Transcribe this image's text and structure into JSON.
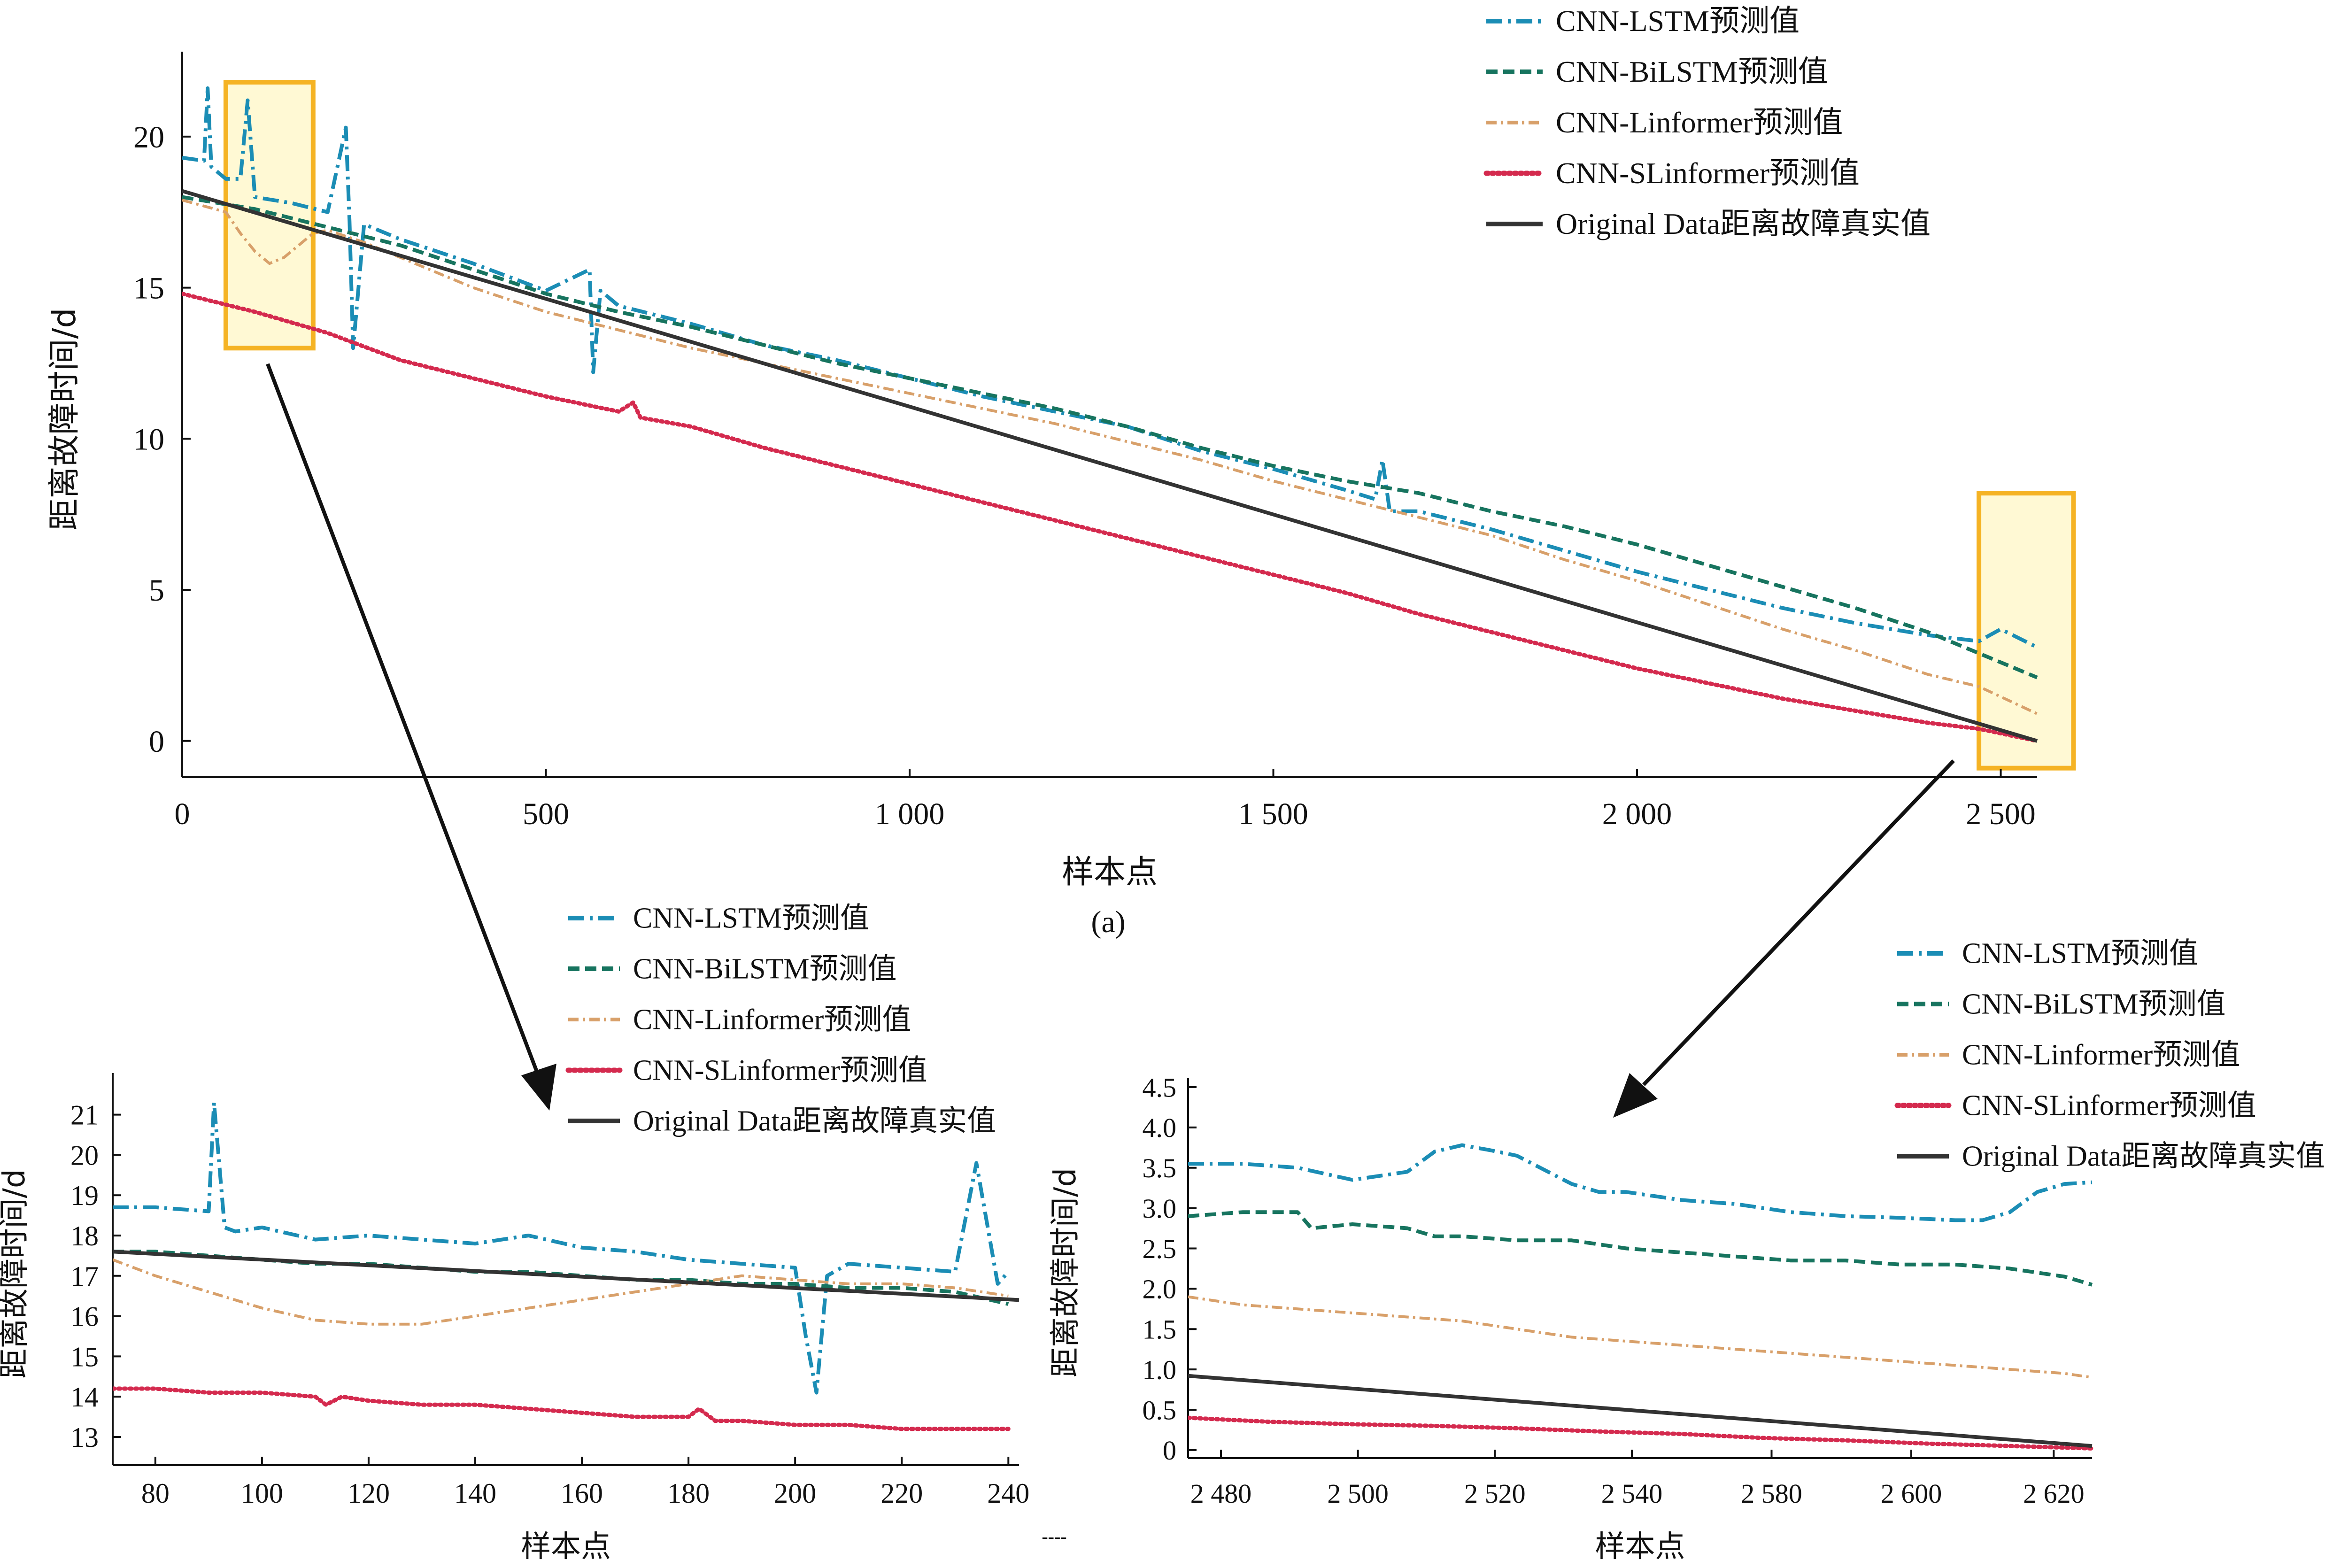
{
  "figure_label": "(a)",
  "footer_mark": "----",
  "colors": {
    "lstm": "#1b8db5",
    "bilstm": "#17745f",
    "linformer": "#d8a06a",
    "slinformer": "#d42a4e",
    "original": "#333333",
    "highlight_fill": "#fff7c2",
    "highlight_stroke": "#f5b324"
  },
  "chart_data": [
    {
      "id": "main",
      "type": "line",
      "title": "",
      "xlabel": "样本点",
      "ylabel": "距离故障时间/d",
      "xlim": [
        0,
        2550
      ],
      "ylim": [
        -1.2,
        22.5
      ],
      "x_ticks": [
        0,
        500,
        1000,
        1500,
        2000,
        2500
      ],
      "x_tick_labels": [
        "0",
        "500",
        "1 000",
        "1 500",
        "2 000",
        "2 500"
      ],
      "y_ticks": [
        0,
        5,
        10,
        15,
        20
      ],
      "y_tick_labels": [
        "0",
        "5",
        "10",
        "15",
        "20"
      ],
      "legend": [
        "CNN-LSTM预测值",
        "CNN-BiLSTM预测值",
        "CNN-Linformer预测值",
        "CNN-SLinformer预测值",
        "Original Data距离故障真实值"
      ],
      "legend_position": "top-right",
      "highlights": [
        {
          "x": [
            60,
            180
          ],
          "y": [
            13,
            21.8
          ]
        },
        {
          "x": [
            2470,
            2600
          ],
          "y": [
            -0.9,
            8.2
          ]
        }
      ],
      "series": [
        {
          "name": "CNN-LSTM预测值",
          "key": "lstm",
          "x": [
            0,
            30,
            35,
            40,
            60,
            80,
            90,
            100,
            150,
            200,
            225,
            230,
            235,
            250,
            300,
            400,
            500,
            560,
            565,
            575,
            600,
            700,
            800,
            900,
            1000,
            1100,
            1200,
            1300,
            1400,
            1500,
            1600,
            1640,
            1650,
            1660,
            1700,
            1800,
            1900,
            2000,
            2100,
            2200,
            2300,
            2400,
            2470,
            2500,
            2550
          ],
          "y": [
            19.3,
            19.2,
            21.6,
            19.0,
            18.6,
            18.6,
            21.2,
            18.0,
            17.8,
            17.5,
            20.3,
            17.2,
            13.0,
            17.1,
            16.6,
            15.8,
            14.9,
            15.6,
            12.2,
            14.9,
            14.4,
            13.8,
            13.1,
            12.6,
            12.0,
            11.4,
            10.9,
            10.4,
            9.6,
            9.0,
            8.3,
            8.0,
            9.3,
            7.6,
            7.6,
            7.0,
            6.3,
            5.6,
            5.0,
            4.4,
            3.9,
            3.5,
            3.3,
            3.7,
            3.1
          ]
        },
        {
          "name": "CNN-BiLSTM预测值",
          "key": "bilstm",
          "x": [
            0,
            50,
            100,
            150,
            200,
            250,
            300,
            400,
            500,
            600,
            700,
            800,
            900,
            1000,
            1100,
            1200,
            1300,
            1400,
            1500,
            1600,
            1700,
            1800,
            1900,
            2000,
            2100,
            2200,
            2300,
            2400,
            2470,
            2550
          ],
          "y": [
            18.0,
            17.8,
            17.6,
            17.3,
            17.0,
            16.7,
            16.4,
            15.6,
            14.8,
            14.2,
            13.7,
            13.1,
            12.5,
            12.0,
            11.5,
            11.0,
            10.4,
            9.7,
            9.1,
            8.6,
            8.2,
            7.6,
            7.1,
            6.5,
            5.8,
            5.1,
            4.4,
            3.6,
            2.9,
            2.1
          ]
        },
        {
          "name": "CNN-Linformer预测值",
          "key": "linformer",
          "x": [
            0,
            60,
            80,
            100,
            120,
            140,
            160,
            180,
            200,
            250,
            300,
            400,
            500,
            600,
            700,
            800,
            900,
            1000,
            1100,
            1200,
            1300,
            1400,
            1500,
            1600,
            1700,
            1800,
            1900,
            2000,
            2100,
            2200,
            2300,
            2400,
            2470,
            2550
          ],
          "y": [
            17.9,
            17.5,
            16.8,
            16.2,
            15.8,
            16.0,
            16.4,
            16.8,
            16.9,
            16.5,
            16.0,
            15.0,
            14.2,
            13.6,
            13.0,
            12.5,
            12.0,
            11.5,
            11.0,
            10.5,
            9.9,
            9.3,
            8.6,
            8.0,
            7.4,
            6.8,
            6.0,
            5.3,
            4.5,
            3.7,
            3.0,
            2.2,
            1.8,
            0.9
          ]
        },
        {
          "name": "CNN-SLinformer预测值",
          "key": "slinformer",
          "x": [
            0,
            100,
            200,
            300,
            400,
            500,
            600,
            620,
            630,
            700,
            800,
            900,
            1000,
            1100,
            1200,
            1300,
            1400,
            1500,
            1600,
            1700,
            1800,
            1900,
            2000,
            2100,
            2200,
            2300,
            2400,
            2470,
            2550
          ],
          "y": [
            14.8,
            14.2,
            13.5,
            12.6,
            12.0,
            11.4,
            10.9,
            11.2,
            10.7,
            10.4,
            9.7,
            9.1,
            8.5,
            7.9,
            7.3,
            6.7,
            6.1,
            5.5,
            4.9,
            4.2,
            3.6,
            3.0,
            2.4,
            1.9,
            1.4,
            1.0,
            0.6,
            0.4,
            0.0
          ]
        },
        {
          "name": "Original Data距离故障真实值",
          "key": "original",
          "x": [
            0,
            2550
          ],
          "y": [
            18.2,
            0.0
          ]
        }
      ]
    },
    {
      "id": "zoom_left",
      "type": "line",
      "title": "",
      "xlabel": "样本点",
      "ylabel": "距离故障时间/d",
      "xlim": [
        72,
        242
      ],
      "ylim": [
        12.3,
        21.8
      ],
      "x_ticks": [
        80,
        100,
        120,
        140,
        160,
        180,
        200,
        220,
        240
      ],
      "x_tick_labels": [
        "80",
        "100",
        "120",
        "140",
        "160",
        "180",
        "200",
        "220",
        "240"
      ],
      "y_ticks": [
        13,
        14,
        15,
        16,
        17,
        18,
        19,
        20,
        21
      ],
      "y_tick_labels": [
        "13",
        "14",
        "15",
        "16",
        "17",
        "18",
        "19",
        "20",
        "21"
      ],
      "legend": [
        "CNN-LSTM预测值",
        "CNN-BiLSTM预测值",
        "CNN-Linformer预测值",
        "CNN-SLinformer预测值",
        "Original Data距离故障真实值"
      ],
      "legend_position": "top-right",
      "series": [
        {
          "name": "CNN-LSTM预测值",
          "key": "lstm",
          "x": [
            72,
            80,
            90,
            91,
            93,
            95,
            100,
            110,
            120,
            130,
            140,
            150,
            160,
            170,
            180,
            190,
            200,
            202,
            204,
            206,
            210,
            220,
            230,
            234,
            236,
            238,
            240
          ],
          "y": [
            18.7,
            18.7,
            18.6,
            21.3,
            18.2,
            18.1,
            18.2,
            17.9,
            18.0,
            17.9,
            17.8,
            18.0,
            17.7,
            17.6,
            17.4,
            17.3,
            17.2,
            15.5,
            14.1,
            17.0,
            17.3,
            17.2,
            17.1,
            19.8,
            18.3,
            16.8,
            17.1
          ]
        },
        {
          "name": "CNN-BiLSTM预测值",
          "key": "bilstm",
          "x": [
            72,
            80,
            90,
            100,
            110,
            120,
            130,
            140,
            150,
            160,
            170,
            180,
            190,
            200,
            210,
            220,
            230,
            240
          ],
          "y": [
            17.6,
            17.6,
            17.5,
            17.4,
            17.3,
            17.3,
            17.2,
            17.1,
            17.1,
            17.0,
            16.9,
            16.9,
            16.8,
            16.8,
            16.7,
            16.7,
            16.6,
            16.3
          ]
        },
        {
          "name": "CNN-Linformer预测值",
          "key": "linformer",
          "x": [
            72,
            80,
            90,
            100,
            110,
            120,
            130,
            140,
            150,
            160,
            170,
            180,
            190,
            200,
            210,
            220,
            230,
            240
          ],
          "y": [
            17.4,
            17.0,
            16.6,
            16.2,
            15.9,
            15.8,
            15.8,
            16.0,
            16.2,
            16.4,
            16.6,
            16.8,
            17.0,
            16.9,
            16.8,
            16.8,
            16.7,
            16.5
          ]
        },
        {
          "name": "CNN-SLinformer预测值",
          "key": "slinformer",
          "x": [
            72,
            80,
            90,
            100,
            110,
            112,
            115,
            120,
            130,
            140,
            150,
            160,
            170,
            180,
            182,
            185,
            190,
            200,
            210,
            220,
            230,
            240
          ],
          "y": [
            14.2,
            14.2,
            14.1,
            14.1,
            14.0,
            13.8,
            14.0,
            13.9,
            13.8,
            13.8,
            13.7,
            13.6,
            13.5,
            13.5,
            13.7,
            13.4,
            13.4,
            13.3,
            13.3,
            13.2,
            13.2,
            13.2
          ]
        },
        {
          "name": "Original Data距离故障真实值",
          "key": "original",
          "x": [
            72,
            242
          ],
          "y": [
            17.6,
            16.4
          ]
        }
      ]
    },
    {
      "id": "zoom_right",
      "type": "line",
      "title": "",
      "xlabel": "样本点",
      "ylabel": "距离故障时间/d",
      "xlim": [
        0,
        33
      ],
      "ylim": [
        -0.1,
        4.5
      ],
      "x_ticks": [
        1.2,
        6.2,
        11.2,
        16.2,
        21.3,
        26.4,
        31.6
      ],
      "x_tick_labels": [
        "2 480",
        "2 500",
        "2 520",
        "2 540",
        "2 580",
        "2 600",
        "2 620"
      ],
      "y_ticks": [
        0,
        0.5,
        1.0,
        1.5,
        2.0,
        2.5,
        3.0,
        3.5,
        4.0,
        4.5
      ],
      "y_tick_labels": [
        "0",
        "0.5",
        "1.0",
        "1.5",
        "2.0",
        "2.5",
        "3.0",
        "3.5",
        "4.0",
        "4.5"
      ],
      "legend": [
        "CNN-LSTM预测值",
        "CNN-BiLSTM预测值",
        "CNN-Linformer预测值",
        "CNN-SLinformer预测值",
        "Original Data距离故障真实值"
      ],
      "legend_position": "top-right",
      "series": [
        {
          "name": "CNN-LSTM预测值",
          "key": "lstm",
          "x": [
            0,
            2,
            4,
            6,
            8,
            9,
            10,
            11,
            12,
            14,
            15,
            16,
            18,
            20,
            22,
            24,
            26,
            28,
            29,
            30,
            31,
            32,
            33
          ],
          "y": [
            3.55,
            3.55,
            3.5,
            3.35,
            3.45,
            3.7,
            3.78,
            3.72,
            3.65,
            3.3,
            3.2,
            3.2,
            3.1,
            3.05,
            2.95,
            2.9,
            2.88,
            2.85,
            2.85,
            2.95,
            3.2,
            3.3,
            3.32
          ]
        },
        {
          "name": "CNN-BiLSTM预测值",
          "key": "bilstm",
          "x": [
            0,
            2,
            4,
            4.5,
            6,
            8,
            9,
            10,
            12,
            14,
            16,
            18,
            20,
            22,
            24,
            26,
            28,
            30,
            32,
            33
          ],
          "y": [
            2.9,
            2.95,
            2.95,
            2.75,
            2.8,
            2.75,
            2.65,
            2.65,
            2.6,
            2.6,
            2.5,
            2.45,
            2.4,
            2.35,
            2.35,
            2.3,
            2.3,
            2.25,
            2.15,
            2.05
          ]
        },
        {
          "name": "CNN-Linformer预测值",
          "key": "linformer",
          "x": [
            0,
            2,
            4,
            6,
            8,
            10,
            12,
            14,
            16,
            18,
            20,
            22,
            24,
            26,
            28,
            30,
            32,
            33
          ],
          "y": [
            1.9,
            1.8,
            1.75,
            1.7,
            1.65,
            1.6,
            1.5,
            1.4,
            1.35,
            1.3,
            1.25,
            1.2,
            1.15,
            1.1,
            1.05,
            1.0,
            0.95,
            0.9
          ]
        },
        {
          "name": "CNN-SLinformer预测值",
          "key": "slinformer",
          "x": [
            0,
            3,
            6,
            9,
            12,
            15,
            18,
            21,
            24,
            27,
            30,
            33
          ],
          "y": [
            0.4,
            0.35,
            0.32,
            0.3,
            0.27,
            0.23,
            0.2,
            0.15,
            0.12,
            0.08,
            0.05,
            0.02
          ]
        },
        {
          "name": "Original Data距离故障真实值",
          "key": "original",
          "x": [
            0,
            33
          ],
          "y": [
            0.92,
            0.05
          ]
        }
      ]
    }
  ]
}
